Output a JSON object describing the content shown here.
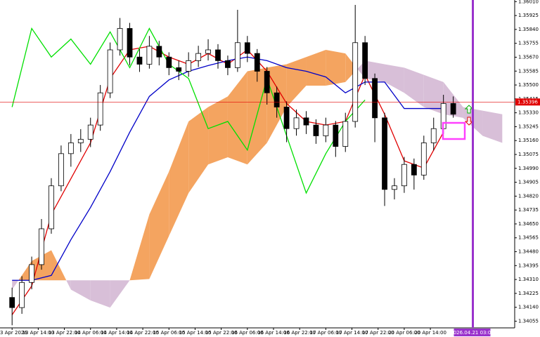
{
  "chart_data": {
    "type": "candlestick",
    "xlim": [
      -3.7,
      153.8
    ],
    "ylim": [
      1.34014,
      1.3602
    ],
    "yticks": [
      1.34055,
      {
        "value": 1.3414,
        "label": "1.34140"
      },
      1.34225,
      {
        "value": 1.3431,
        "label": "1.34310"
      },
      1.34395,
      {
        "value": 1.3448,
        "label": "1.34480"
      },
      1.34565,
      {
        "value": 1.3465,
        "label": "1.34650"
      },
      1.34735,
      {
        "value": 1.3482,
        "label": "1.34820"
      },
      1.34905,
      {
        "value": 1.3499,
        "label": "1.34990"
      },
      1.35075,
      {
        "value": 1.3516,
        "label": "1.35160"
      },
      1.35245,
      {
        "value": 1.3533,
        "label": "1.35330"
      },
      1.35415,
      {
        "value": 1.355,
        "label": "1.35500"
      },
      1.35585,
      {
        "value": 1.3567,
        "label": "1.35670"
      },
      1.35755,
      {
        "value": 1.3584,
        "label": "1.35840"
      },
      1.35925,
      {
        "value": 1.3601,
        "label": "1.36010"
      }
    ],
    "xticks": [
      {
        "value": 0,
        "label": "13 Apr 2026"
      },
      {
        "value": 8,
        "label": "13 Apr 14:00"
      },
      {
        "value": 16,
        "label": "13 Apr 22:00"
      },
      {
        "value": 24,
        "label": "14 Apr 06:00"
      },
      {
        "value": 32,
        "label": "14 Apr 14:00"
      },
      {
        "value": 40,
        "label": "14 Apr 22:00"
      },
      {
        "value": 48,
        "label": "15 Apr 06:00"
      },
      {
        "value": 56,
        "label": "15 Apr 14:00"
      },
      {
        "value": 64,
        "label": "15 Apr 22:00"
      },
      {
        "value": 72,
        "label": "16 Apr 06:00"
      },
      {
        "value": 80,
        "label": "16 Apr 14:00"
      },
      {
        "value": 88,
        "label": "16 Apr 22:00"
      },
      {
        "value": 96,
        "label": "17 Apr 06:00"
      },
      {
        "value": 104,
        "label": "17 Apr 14:00"
      },
      {
        "value": 112,
        "label": "17 Apr 22:00"
      },
      {
        "value": 120,
        "label": "20 Apr 06:00"
      },
      {
        "value": 128,
        "label": "20 Apr 14:00"
      }
    ],
    "cloud": {
      "up_color": "#f4a460",
      "down_color": "#d8bfd8",
      "x": [
        0,
        6,
        12,
        18,
        24,
        30,
        36,
        42,
        48,
        54,
        60,
        66,
        72,
        78,
        84,
        90,
        96,
        102,
        108,
        114,
        120,
        126,
        132,
        138,
        144,
        150
      ],
      "span_a": [
        1.34248,
        1.34423,
        1.34489,
        1.34248,
        1.34182,
        1.34138,
        1.34305,
        1.34708,
        1.3497,
        1.35277,
        1.35365,
        1.3543,
        1.35584,
        1.35606,
        1.35627,
        1.35671,
        1.35715,
        1.35693,
        1.3554,
        1.35518,
        1.35452,
        1.35365,
        1.35321,
        1.35299,
        1.35189,
        1.35146
      ],
      "span_b": [
        1.34305,
        1.34305,
        1.34305,
        1.34305,
        1.34305,
        1.34305,
        1.34305,
        1.34313,
        1.34576,
        1.34839,
        1.35014,
        1.35058,
        1.35014,
        1.35146,
        1.35365,
        1.35496,
        1.35496,
        1.35518,
        1.35649,
        1.35627,
        1.35606,
        1.35562,
        1.35518,
        1.35365,
        1.35343,
        1.35321
      ]
    },
    "line_x": [
      0,
      6,
      12,
      18,
      24,
      30,
      36,
      42,
      48,
      54,
      60,
      66,
      72,
      78,
      84,
      90,
      96,
      102,
      108,
      114,
      120,
      126,
      132
    ],
    "lines": [
      {
        "color": "#e00000",
        "values": [
          1.34094,
          1.3427,
          1.34708,
          1.34927,
          1.35146,
          1.3554,
          1.35715,
          1.35737,
          1.35671,
          1.35627,
          1.35693,
          1.35627,
          1.35715,
          1.35584,
          1.35387,
          1.35277,
          1.35255,
          1.35277,
          1.35562,
          1.35321,
          1.35036,
          1.34992,
          1.35211
        ]
      },
      {
        "color": "#0000c8",
        "values": [
          1.34305,
          1.34305,
          1.34335,
          1.34554,
          1.34751,
          1.3497,
          1.35211,
          1.3543,
          1.35531,
          1.35584,
          1.35619,
          1.35649,
          1.35671,
          1.35649,
          1.35606,
          1.35584,
          1.35549,
          1.35452,
          1.35518,
          1.35518,
          1.35356,
          1.35356,
          1.35356
        ]
      },
      {
        "color": "#00e000",
        "values": [
          1.35365,
          1.35846,
          1.35671,
          1.35781,
          1.35627,
          1.35825,
          1.35606,
          1.35846,
          1.35627,
          1.3554,
          1.35233,
          1.35277,
          1.35102,
          1.3554,
          1.35189,
          1.34839,
          1.3508,
          1.35277,
          1.35408,
          null,
          null,
          null,
          null
        ]
      }
    ],
    "candles": {
      "up_color": "#ffffff",
      "down_color": "#000000",
      "x": [
        0,
        3,
        6,
        9,
        12,
        15,
        18,
        21,
        24,
        27,
        30,
        33,
        36,
        39,
        42,
        45,
        48,
        51,
        54,
        57,
        60,
        63,
        66,
        69,
        72,
        75,
        78,
        81,
        84,
        87,
        90,
        93,
        96,
        99,
        102,
        105,
        108,
        111,
        114,
        117,
        120,
        123,
        126,
        129,
        132,
        135
      ],
      "open": [
        1.342,
        1.34138,
        1.34292,
        1.34401,
        1.3462,
        1.34883,
        1.3508,
        1.35146,
        1.35168,
        1.35255,
        1.35452,
        1.35715,
        1.35846,
        1.35671,
        1.35627,
        1.35737,
        1.35671,
        1.35606,
        1.35584,
        1.35649,
        1.35693,
        1.35715,
        1.35649,
        1.35606,
        1.35759,
        1.35693,
        1.35584,
        1.35452,
        1.35365,
        1.35233,
        1.35299,
        1.35255,
        1.35189,
        1.35255,
        1.35124,
        1.35277,
        1.35759,
        1.3554,
        1.35299,
        1.34861,
        1.34883,
        1.35014,
        1.34949,
        1.35146,
        1.35233,
        1.35387
      ],
      "high": [
        1.3426,
        1.3433,
        1.3445,
        1.3468,
        1.3493,
        1.3513,
        1.352,
        1.3523,
        1.353,
        1.355,
        1.3576,
        1.3591,
        1.3588,
        1.3572,
        1.358,
        1.3577,
        1.357,
        1.3565,
        1.357,
        1.3574,
        1.3578,
        1.3575,
        1.3568,
        1.3596,
        1.358,
        1.3572,
        1.3561,
        1.3549,
        1.354,
        1.3535,
        1.3534,
        1.3529,
        1.353,
        1.3528,
        1.3533,
        1.3599,
        1.358,
        1.3557,
        1.3533,
        1.3493,
        1.3506,
        1.3505,
        1.3519,
        1.353,
        1.3544,
        1.3543
      ],
      "low": [
        1.3403,
        1.341,
        1.3425,
        1.3437,
        1.3459,
        1.3485,
        1.35,
        1.3509,
        1.3512,
        1.3522,
        1.3542,
        1.3568,
        1.3562,
        1.3558,
        1.356,
        1.3562,
        1.3556,
        1.3553,
        1.3555,
        1.3561,
        1.3565,
        1.356,
        1.3556,
        1.3558,
        1.3564,
        1.3552,
        1.3538,
        1.353,
        1.3515,
        1.3519,
        1.352,
        1.3514,
        1.3515,
        1.3506,
        1.3509,
        1.3524,
        1.355,
        1.3515,
        1.3476,
        1.348,
        1.3484,
        1.3486,
        1.3492,
        1.351,
        1.352,
        1.353
      ],
      "close": [
        1.34138,
        1.34292,
        1.34401,
        1.3462,
        1.34883,
        1.3508,
        1.35146,
        1.35168,
        1.35255,
        1.35452,
        1.35715,
        1.35846,
        1.35671,
        1.35627,
        1.35737,
        1.35671,
        1.35606,
        1.35584,
        1.35649,
        1.35693,
        1.35715,
        1.35649,
        1.35606,
        1.35759,
        1.35693,
        1.35584,
        1.35452,
        1.35365,
        1.35233,
        1.35299,
        1.35255,
        1.35189,
        1.35255,
        1.35124,
        1.35277,
        1.35759,
        1.3554,
        1.35299,
        1.34861,
        1.34883,
        1.35014,
        1.34949,
        1.35146,
        1.35233,
        1.35387,
        1.35321
      ]
    },
    "price_line": {
      "value": 1.35396,
      "color": "#e00000"
    },
    "cursor": {
      "x": 141,
      "label": "2026.04.21 03:00",
      "color": "#9932cc"
    }
  }
}
